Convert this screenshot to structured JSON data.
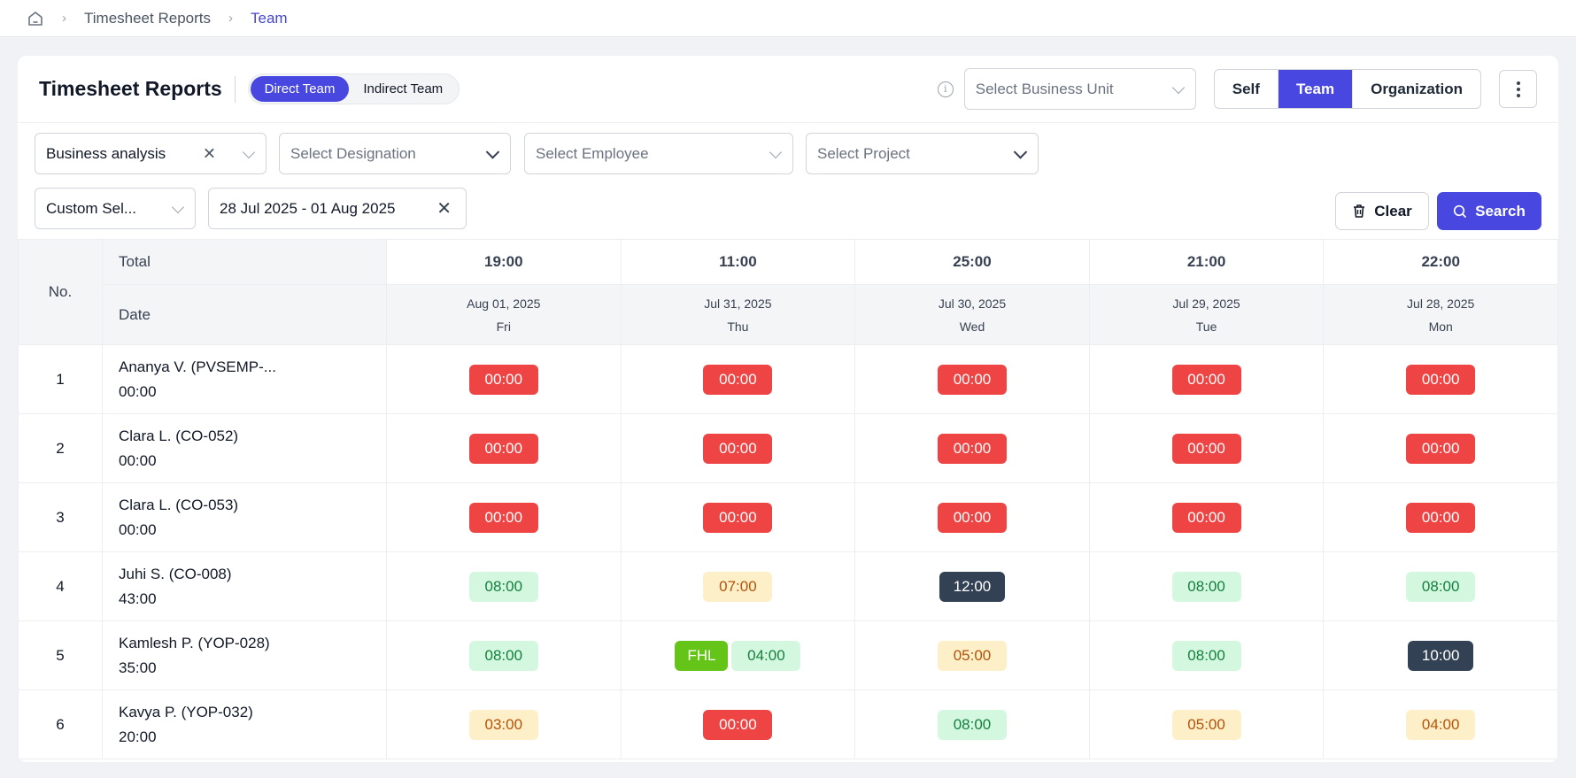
{
  "breadcrumb": {
    "items": [
      "Timesheet Reports",
      "Team"
    ]
  },
  "header": {
    "title": "Timesheet Reports",
    "team_tabs": [
      {
        "label": "Direct Team",
        "active": true
      },
      {
        "label": "Indirect Team",
        "active": false
      }
    ],
    "business_unit_placeholder": "Select Business Unit",
    "scope_tabs": [
      {
        "label": "Self",
        "active": false
      },
      {
        "label": "Team",
        "active": true
      },
      {
        "label": "Organization",
        "active": false
      }
    ]
  },
  "filters": {
    "department": "Business analysis",
    "designation_placeholder": "Select Designation",
    "employee_placeholder": "Select Employee",
    "project_placeholder": "Select Project",
    "period": "Custom Sel...",
    "date_range": "28 Jul 2025 - 01 Aug 2025",
    "clear_label": "Clear",
    "search_label": "Search"
  },
  "table": {
    "no_header": "No.",
    "total_label": "Total",
    "date_label": "Date",
    "days": [
      {
        "total": "19:00",
        "date": "Aug 01, 2025",
        "weekday": "Fri"
      },
      {
        "total": "11:00",
        "date": "Jul 31, 2025",
        "weekday": "Thu"
      },
      {
        "total": "25:00",
        "date": "Jul 30, 2025",
        "weekday": "Wed"
      },
      {
        "total": "21:00",
        "date": "Jul 29, 2025",
        "weekday": "Tue"
      },
      {
        "total": "22:00",
        "date": "Jul 28, 2025",
        "weekday": "Mon"
      }
    ],
    "rows": [
      {
        "no": "1",
        "name": "Ananya V. (PVSEMP-...",
        "total": "00:00",
        "cells": [
          [
            "00:00",
            "red"
          ],
          [
            "00:00",
            "red"
          ],
          [
            "00:00",
            "red"
          ],
          [
            "00:00",
            "red"
          ],
          [
            "00:00",
            "red"
          ]
        ]
      },
      {
        "no": "2",
        "name": "Clara L. (CO-052)",
        "total": "00:00",
        "cells": [
          [
            "00:00",
            "red"
          ],
          [
            "00:00",
            "red"
          ],
          [
            "00:00",
            "red"
          ],
          [
            "00:00",
            "red"
          ],
          [
            "00:00",
            "red"
          ]
        ]
      },
      {
        "no": "3",
        "name": "Clara L. (CO-053)",
        "total": "00:00",
        "cells": [
          [
            "00:00",
            "red"
          ],
          [
            "00:00",
            "red"
          ],
          [
            "00:00",
            "red"
          ],
          [
            "00:00",
            "red"
          ],
          [
            "00:00",
            "red"
          ]
        ]
      },
      {
        "no": "4",
        "name": "Juhi S. (CO-008)",
        "total": "43:00",
        "cells": [
          [
            "08:00",
            "green"
          ],
          [
            "07:00",
            "amber"
          ],
          [
            "12:00",
            "dark"
          ],
          [
            "08:00",
            "green"
          ],
          [
            "08:00",
            "green"
          ]
        ]
      },
      {
        "no": "5",
        "name": "Kamlesh P. (YOP-028)",
        "total": "35:00",
        "cells": [
          [
            "08:00",
            "green"
          ],
          [
            "04:00",
            "green",
            "FHL"
          ],
          [
            "05:00",
            "amber"
          ],
          [
            "08:00",
            "green"
          ],
          [
            "10:00",
            "dark"
          ]
        ]
      },
      {
        "no": "6",
        "name": "Kavya P. (YOP-032)",
        "total": "20:00",
        "cells": [
          [
            "03:00",
            "amber"
          ],
          [
            "00:00",
            "red"
          ],
          [
            "08:00",
            "green"
          ],
          [
            "05:00",
            "amber"
          ],
          [
            "04:00",
            "amber"
          ]
        ]
      }
    ]
  },
  "colors": {
    "accent": "#4848e0",
    "zero_hours": "#ef4444",
    "full_day": "#d4f7e0",
    "partial_day": "#fdefc8",
    "overtime": "#334155",
    "leave_tag": "#65c418"
  }
}
